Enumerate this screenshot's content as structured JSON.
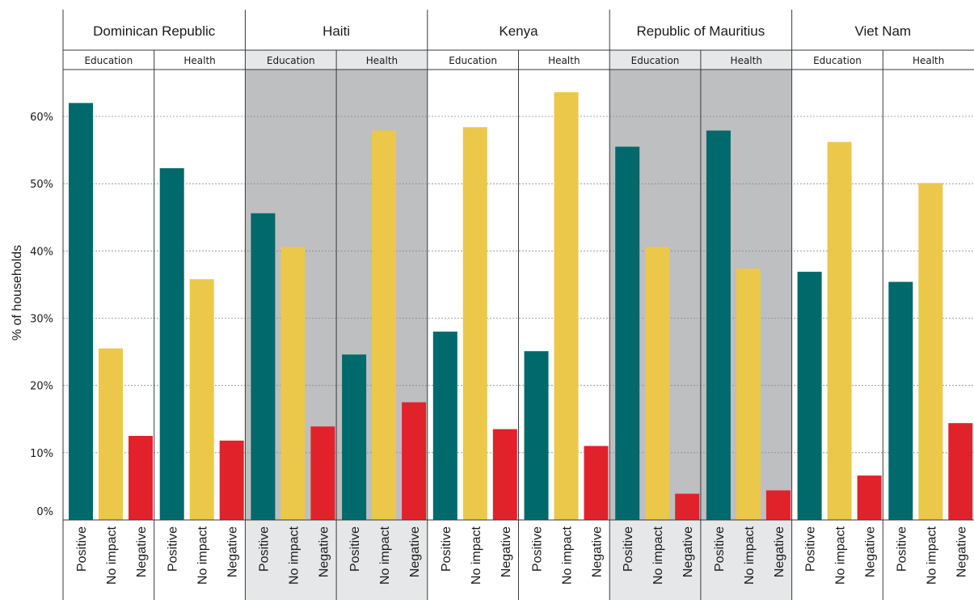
{
  "chart_data": {
    "type": "bar",
    "ylabel": "% of households",
    "ylim": [
      0,
      65
    ],
    "yticks": [
      0,
      10,
      20,
      30,
      40,
      50,
      60
    ],
    "ytick_labels": [
      "0%",
      "10%",
      "20%",
      "30%",
      "40%",
      "50%",
      "60%"
    ],
    "grid": "horizontal dotted",
    "categories": [
      "Positive",
      "No impact",
      "Negative"
    ],
    "colors": {
      "Positive": "#00696b",
      "No impact": "#ebc84a",
      "Negative": "#e1222b",
      "shaded_panel": "#bebfc1",
      "shaded_header": "#e6e7e8"
    },
    "countries": [
      {
        "name": "Dominican Republic",
        "shaded": false,
        "groups": [
          {
            "sector": "Education",
            "values": [
              62,
              25.5,
              12.5
            ]
          },
          {
            "sector": "Health",
            "values": [
              52.3,
              35.8,
              11.8
            ]
          }
        ]
      },
      {
        "name": "Haiti",
        "shaded": true,
        "groups": [
          {
            "sector": "Education",
            "values": [
              45.6,
              40.6,
              13.9
            ]
          },
          {
            "sector": "Health",
            "values": [
              24.6,
              57.9,
              17.5
            ]
          }
        ]
      },
      {
        "name": "Kenya",
        "shaded": false,
        "groups": [
          {
            "sector": "Education",
            "values": [
              28,
              58.4,
              13.5
            ]
          },
          {
            "sector": "Health",
            "values": [
              25.1,
              63.6,
              11
            ]
          }
        ]
      },
      {
        "name": "Republic of Mauritius",
        "shaded": true,
        "groups": [
          {
            "sector": "Education",
            "values": [
              55.5,
              40.6,
              3.9
            ]
          },
          {
            "sector": "Health",
            "values": [
              57.9,
              37.4,
              4.4
            ]
          }
        ]
      },
      {
        "name": "Viet Nam",
        "shaded": false,
        "groups": [
          {
            "sector": "Education",
            "values": [
              36.9,
              56.2,
              6.6
            ]
          },
          {
            "sector": "Health",
            "values": [
              35.4,
              50.1,
              14.4
            ]
          }
        ]
      }
    ]
  }
}
